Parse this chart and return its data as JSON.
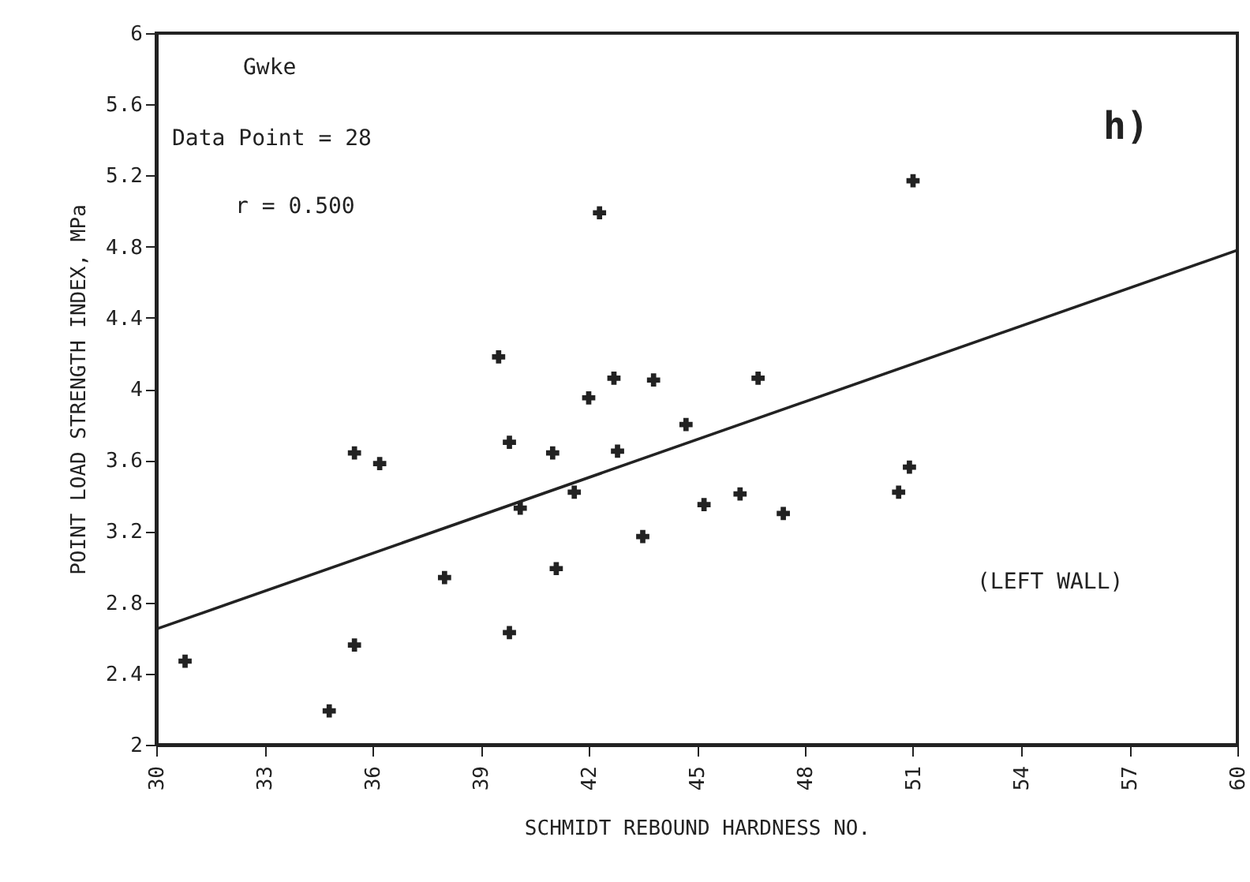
{
  "chart_data": {
    "type": "scatter",
    "xlabel": "SCHMIDT REBOUND HARDNESS NO.",
    "ylabel": "POINT LOAD STRENGTH INDEX, MPa",
    "xlim": [
      30,
      60
    ],
    "xticks": [
      30,
      33,
      36,
      39,
      42,
      45,
      48,
      51,
      54,
      57,
      60
    ],
    "ylim": [
      2,
      6
    ],
    "yticks": [
      2,
      2.4,
      2.8,
      3.2,
      3.6,
      4,
      4.4,
      4.8,
      5.2,
      5.6,
      6
    ],
    "grid": false,
    "annotations": [
      "Gwke",
      "Data Point = 28",
      "r = 0.500",
      "h)",
      "(LEFT WALL)"
    ],
    "series": [
      {
        "marker": "cross",
        "color": "#222222",
        "x": [
          30.8,
          35.5,
          36.2,
          39.5,
          39.8,
          40.1,
          38.0,
          39.8,
          35.5,
          34.8,
          42.3,
          42.7,
          43.8,
          42.0,
          46.7,
          41.0,
          42.8,
          44.7,
          41.6,
          45.2,
          46.2,
          47.4,
          43.5,
          41.1,
          51.0,
          50.9,
          50.6
        ],
        "values": [
          2.47,
          3.64,
          3.58,
          4.18,
          3.7,
          3.33,
          2.94,
          2.63,
          2.56,
          2.19,
          4.99,
          4.06,
          4.05,
          3.95,
          4.06,
          3.64,
          3.65,
          3.8,
          3.42,
          3.35,
          3.41,
          3.3,
          3.17,
          2.99,
          5.17,
          3.56,
          3.42
        ]
      },
      {
        "type": "line",
        "line_style": "solid",
        "color": "#222222",
        "x": [
          30,
          60
        ],
        "values": [
          2.65,
          4.78
        ]
      }
    ]
  }
}
